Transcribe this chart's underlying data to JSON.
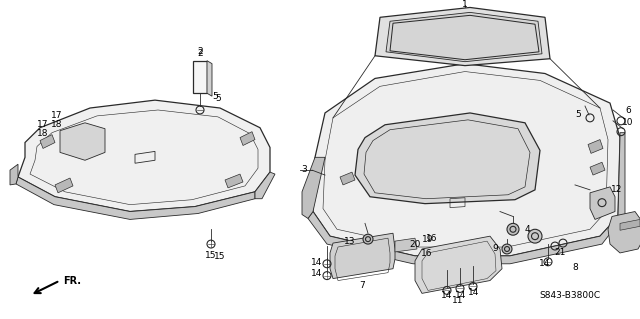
{
  "bg_color": "#ffffff",
  "line_color": "#2a2a2a",
  "ref_code": "S843-B3800C",
  "fr_label": "FR.",
  "figsize": [
    6.4,
    3.19
  ],
  "dpi": 100,
  "gray_fill": "#d8d8d8",
  "light_gray": "#e8e8e8"
}
